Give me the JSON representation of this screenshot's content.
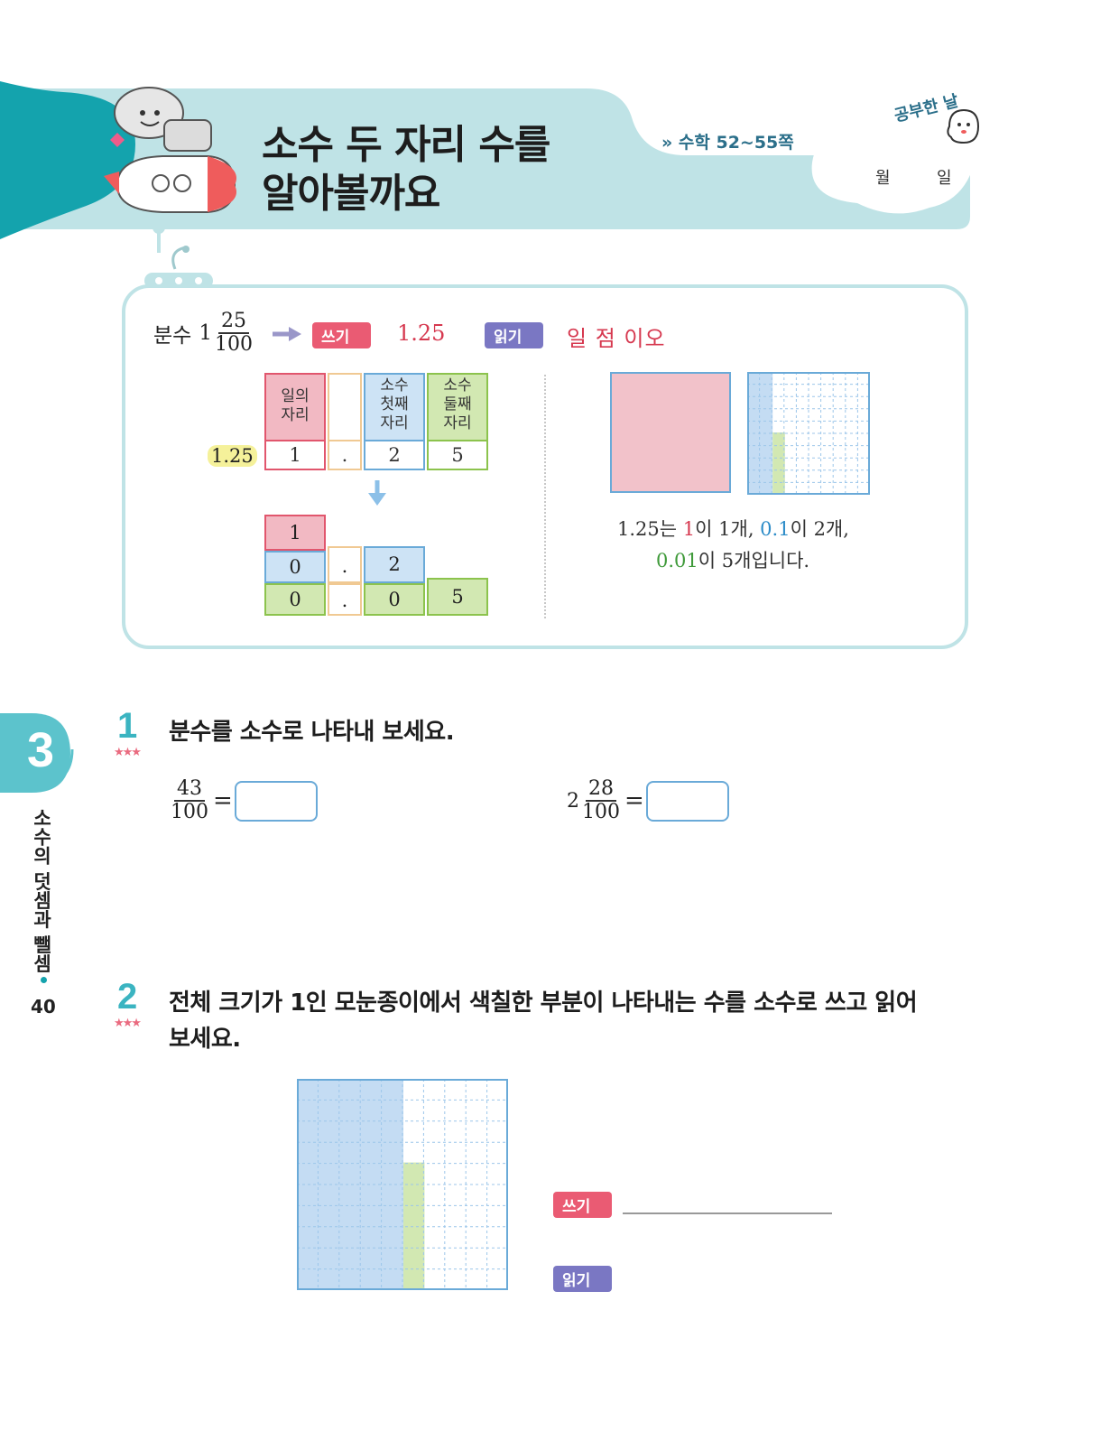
{
  "header": {
    "title_line1": "소수 두 자리 수를",
    "title_line2": "알아볼까요",
    "reference": "수학 52~55쪽",
    "study_day_label": "공부한 날",
    "month_label": "월",
    "day_label": "일"
  },
  "concept": {
    "fraction_label": "분수",
    "fraction_whole": "1",
    "fraction_num": "25",
    "fraction_den": "100",
    "write_tag": "쓰기",
    "write_value": "1.25",
    "read_tag": "읽기",
    "read_value": "일 점 이오",
    "place_headers": [
      "일의\n자리",
      "",
      "소수\n첫째\n자리",
      "소수\n둘째\n자리"
    ],
    "number_label": "1.25",
    "digits": [
      "1",
      ".",
      "2",
      "5"
    ],
    "breakdown": {
      "row1": [
        "1"
      ],
      "row2": [
        "0",
        ".",
        "2"
      ],
      "row3": [
        "0",
        ".",
        "0",
        "5"
      ]
    },
    "explain_line1": [
      "1.25는 ",
      "1",
      "이 1개, ",
      "0.1",
      "이 2개,"
    ],
    "explain_line2": [
      "0.01",
      "이 5개입니다."
    ]
  },
  "colors": {
    "teal": "#14a3ad",
    "header_bg": "#bfe3e6",
    "pink": "#f2b9c3",
    "blue": "#cde3f5",
    "green": "#d2e8b2",
    "write_tag": "#ea5b73",
    "read_tag": "#7a77c3"
  },
  "side": {
    "chapter_number": "3",
    "chapter_title": "소수의 덧셈과 뺄셈",
    "page_number": "40"
  },
  "q1": {
    "number": "1",
    "text": "분수를 소수로 나타내 보세요.",
    "a_num": "43",
    "a_den": "100",
    "b_whole": "2",
    "b_num": "28",
    "b_den": "100",
    "equals": "="
  },
  "q2": {
    "number": "2",
    "text_line1": "전체 크기가 1인 모눈종이에서 색칠한 부분이 나타내는 수를 소수로 쓰고 읽어",
    "text_line2": "보세요.",
    "write_tag": "쓰기",
    "read_tag": "읽기",
    "grid_shading": {
      "full_columns": 5,
      "extra_cells": 6,
      "grid_size": 10
    }
  }
}
